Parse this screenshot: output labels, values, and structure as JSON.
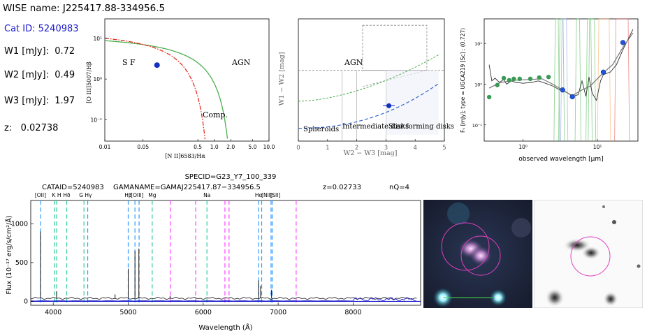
{
  "info": {
    "wise_name": "WISE name: J225417.88-334956.5",
    "cat_id": "Cat ID: 5240983",
    "w1_label": "W1 [mJy]:",
    "w1_value": "0.72",
    "w2_label": "W2 [mJy]:",
    "w2_value": "0.49",
    "w3_label": "W3 [mJy]:",
    "w3_value": "1.97",
    "z_label": "z:",
    "z_value": "0.02738"
  },
  "colors": {
    "blue_text": "#1a1acc",
    "point": "#1030c0",
    "kewley": "#e8281e",
    "kauffmann": "#4caf50",
    "dashed_blue": "#3366cc"
  },
  "chart_data": [
    {
      "type": "scatter",
      "name": "bpt",
      "xscale": "log",
      "yscale": "log",
      "xlim": [
        0.01,
        10
      ],
      "ylim": [
        0.03,
        30
      ],
      "xlabel": "[N II]6583/Hα",
      "ylabel": "[O III]5007/Hβ",
      "xticks": [
        "0.01",
        "0.05",
        "0.5",
        "1.0",
        "2.0",
        "5.0",
        "10.0"
      ],
      "yticks": [
        "10⁻¹",
        "10⁰",
        "10¹"
      ],
      "regions": [
        "S F",
        "AGN",
        "Comp."
      ],
      "points": [
        {
          "x": 0.09,
          "y": 2.2
        }
      ]
    },
    {
      "type": "scatter",
      "name": "wise_colors",
      "xlim": [
        0,
        5
      ],
      "ylim": [
        -0.3,
        1.6
      ],
      "xlabel": "W2 − W3 [mag]",
      "ylabel": "W1 − W2 [mag]",
      "xticks": [
        "0",
        "1",
        "2",
        "3",
        "4",
        "5"
      ],
      "regions": [
        "AGN",
        "Spheroids",
        "Intermediate disks",
        "Star forming disks"
      ],
      "points": [
        {
          "x": 3.1,
          "y": 0.25,
          "xerr": 0.2
        }
      ]
    },
    {
      "type": "line",
      "name": "sed",
      "xscale": "log",
      "yscale": "log",
      "xlim": [
        0.3,
        35
      ],
      "ylim": [
        0.04,
        40
      ],
      "xlabel": "observed wavelength [μm]",
      "ylabel": "Fᵥ [mJy]; type = UGCA219 [Sc] ; (0.727)",
      "xticks": [
        "10⁰",
        "10¹"
      ],
      "yticks": [
        "10⁻¹",
        "10⁰",
        "10¹"
      ],
      "photometry_green": [
        {
          "x": 0.35,
          "y": 0.48
        },
        {
          "x": 0.45,
          "y": 0.95
        },
        {
          "x": 0.55,
          "y": 1.4
        },
        {
          "x": 0.65,
          "y": 1.25
        },
        {
          "x": 0.75,
          "y": 1.35
        },
        {
          "x": 0.9,
          "y": 1.35
        },
        {
          "x": 1.25,
          "y": 1.35
        },
        {
          "x": 1.65,
          "y": 1.45
        },
        {
          "x": 2.2,
          "y": 1.5
        }
      ],
      "photometry_blue": [
        {
          "x": 3.4,
          "y": 0.72
        },
        {
          "x": 4.6,
          "y": 0.49
        },
        {
          "x": 12,
          "y": 1.97
        },
        {
          "x": 22,
          "y": 10.5
        }
      ]
    },
    {
      "type": "line",
      "name": "spectrum",
      "title": "SPECID=G23_Y7_100_339",
      "catalog_label": "CATAID=5240983",
      "gama_label": "GAMANAME=GAMAJ225417.87−334956.5",
      "z_label": "z=0.02733",
      "nq_label": "nQ=4",
      "xlim": [
        3700,
        8900
      ],
      "ylim": [
        -50,
        1300
      ],
      "xlabel": "Wavelength (Å)",
      "ylabel": "Flux (10⁻¹⁷ erg/s/cm²/Å)",
      "xticks": [
        "4000",
        "5000",
        "6000",
        "7000",
        "8000"
      ],
      "yticks": [
        "0",
        "500",
        "1000"
      ],
      "line_labels": [
        "[OII]",
        "K H",
        "Hδ",
        "G Hγ",
        "Hβ",
        "[OIII]",
        "Mg",
        "Na",
        "Hα",
        "[NII]",
        "[SII]"
      ],
      "emission_peaks": [
        {
          "x": 3830,
          "y": 900
        },
        {
          "x": 4045,
          "y": 130
        },
        {
          "x": 4825,
          "y": 90
        },
        {
          "x": 5000,
          "y": 420
        },
        {
          "x": 5090,
          "y": 650
        },
        {
          "x": 5142,
          "y": 680
        },
        {
          "x": 5558,
          "y": 70
        },
        {
          "x": 6300,
          "y": 50
        },
        {
          "x": 6738,
          "y": 270
        },
        {
          "x": 6766,
          "y": 200
        },
        {
          "x": 6912,
          "y": 150
        }
      ]
    }
  ]
}
